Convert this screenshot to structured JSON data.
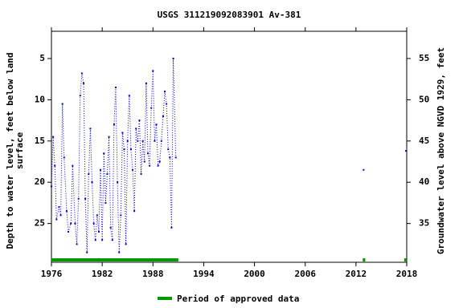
{
  "chart_data": {
    "type": "line",
    "title": "USGS 311219092083901 Av-381",
    "ylabel": [
      "Depth to water level, feet below land",
      "surface"
    ],
    "y2label": "Groundwater level above NGVD 1929, feet",
    "x": [
      1976.0,
      1976.2,
      1976.4,
      1976.6,
      1976.9,
      1977.1,
      1977.3,
      1977.5,
      1977.8,
      1978.0,
      1978.3,
      1978.5,
      1978.8,
      1979.0,
      1979.2,
      1979.4,
      1979.6,
      1979.8,
      1980.0,
      1980.2,
      1980.4,
      1980.6,
      1980.8,
      1981.0,
      1981.2,
      1981.4,
      1981.6,
      1981.8,
      1982.0,
      1982.2,
      1982.4,
      1982.6,
      1982.8,
      1983.0,
      1983.2,
      1983.4,
      1983.6,
      1983.8,
      1984.0,
      1984.2,
      1984.4,
      1984.6,
      1984.8,
      1985.0,
      1985.2,
      1985.4,
      1985.6,
      1985.8,
      1986.0,
      1986.2,
      1986.4,
      1986.6,
      1986.8,
      1987.0,
      1987.2,
      1987.4,
      1987.6,
      1987.8,
      1988.0,
      1988.2,
      1988.4,
      1988.6,
      1988.8,
      1989.0,
      1989.2,
      1989.4,
      1989.6,
      1989.8,
      1990.0,
      1990.2,
      1990.4,
      1990.7,
      2000.0,
      2012.9,
      2015.0,
      2017.9
    ],
    "series": [
      {
        "name": "Depth to water level",
        "color": "#0000cc",
        "values": [
          20.5,
          14.5,
          18,
          24.5,
          23,
          24,
          10.5,
          17,
          23.5,
          26,
          25,
          18,
          25,
          27.5,
          22,
          9.5,
          6.8,
          8,
          22,
          28.5,
          19,
          13.5,
          20,
          25,
          27,
          24,
          26,
          18.5,
          27,
          16.5,
          22.5,
          19,
          14.5,
          25.5,
          27,
          13,
          8.5,
          20,
          28.5,
          24,
          14,
          16,
          27.5,
          15,
          9.5,
          16,
          18.5,
          23.5,
          13.5,
          15,
          12.5,
          19,
          15,
          17.5,
          8,
          16.5,
          18,
          11,
          6.5,
          15,
          13,
          18,
          17.5,
          15,
          12,
          9,
          10.5,
          16,
          17,
          25.5,
          5,
          17,
          null,
          18.5,
          null,
          16.2
        ]
      }
    ],
    "approved_periods": [
      [
        1976.0,
        1991.0
      ],
      [
        2012.8,
        2013.1
      ],
      [
        2017.7,
        2018.0
      ]
    ],
    "approved_color": "#009900",
    "approved_label": "Period of approved data",
    "xlim": [
      1976,
      2018
    ],
    "xticks": [
      1976,
      1982,
      1988,
      1994,
      2000,
      2006,
      2012,
      2018
    ],
    "ylim": [
      1.7,
      29.7
    ],
    "yticks": [
      5,
      10,
      15,
      20,
      25
    ],
    "y2lim": [
      58.3,
      30.3
    ],
    "y2ticks": [
      35,
      40,
      45,
      50,
      55
    ]
  }
}
